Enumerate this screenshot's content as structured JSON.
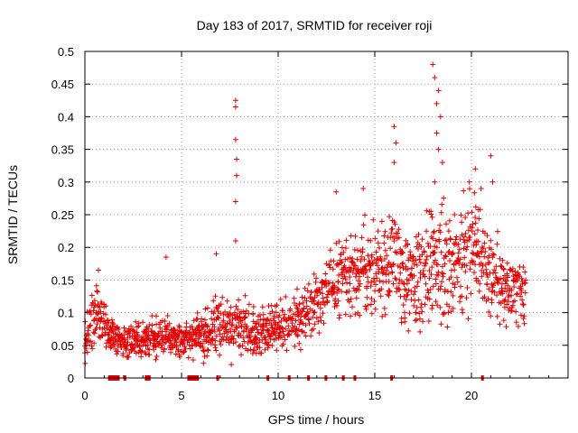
{
  "chart_data": {
    "type": "scatter",
    "title": "Day 183 of 2017, SRMTID for receiver roji",
    "xlabel": "GPS time / hours",
    "ylabel": "SRMTID / TECUs",
    "xlim": [
      0,
      25
    ],
    "ylim": [
      0,
      0.5
    ],
    "x_ticks": [
      "0",
      "5",
      "10",
      "15",
      "20"
    ],
    "y_ticks": [
      "0",
      "0.05",
      "0.1",
      "0.15",
      "0.2",
      "0.25",
      "0.3",
      "0.35",
      "0.4",
      "0.45",
      "0.5"
    ],
    "grid": true,
    "marker": "+",
    "color": "#e00000",
    "data_gaps_on_x_axis": [
      [
        1.2,
        1.8
      ],
      [
        2.0,
        2.1
      ],
      [
        3.1,
        3.4
      ],
      [
        5.3,
        5.9
      ],
      [
        6.8,
        6.9
      ],
      [
        9.4,
        9.5
      ],
      [
        10.5,
        10.6
      ],
      [
        11.5,
        11.6
      ],
      [
        12.4,
        12.5
      ],
      [
        13.3,
        13.4
      ],
      [
        13.9,
        14.0
      ],
      [
        15.8,
        15.9
      ],
      [
        20.5,
        20.6
      ]
    ],
    "profile": [
      {
        "x": 0.0,
        "y": 0.055,
        "spread": 0.03
      },
      {
        "x": 0.6,
        "y": 0.1,
        "spread": 0.05
      },
      {
        "x": 1.2,
        "y": 0.07,
        "spread": 0.03
      },
      {
        "x": 2.0,
        "y": 0.055,
        "spread": 0.025
      },
      {
        "x": 3.0,
        "y": 0.06,
        "spread": 0.025
      },
      {
        "x": 4.0,
        "y": 0.065,
        "spread": 0.035
      },
      {
        "x": 5.0,
        "y": 0.055,
        "spread": 0.025
      },
      {
        "x": 6.0,
        "y": 0.065,
        "spread": 0.035
      },
      {
        "x": 7.0,
        "y": 0.08,
        "spread": 0.05
      },
      {
        "x": 8.0,
        "y": 0.08,
        "spread": 0.05
      },
      {
        "x": 9.0,
        "y": 0.075,
        "spread": 0.04
      },
      {
        "x": 10.0,
        "y": 0.075,
        "spread": 0.04
      },
      {
        "x": 11.0,
        "y": 0.09,
        "spread": 0.04
      },
      {
        "x": 12.0,
        "y": 0.12,
        "spread": 0.05
      },
      {
        "x": 13.0,
        "y": 0.15,
        "spread": 0.06
      },
      {
        "x": 14.0,
        "y": 0.16,
        "spread": 0.07
      },
      {
        "x": 15.0,
        "y": 0.17,
        "spread": 0.07
      },
      {
        "x": 16.0,
        "y": 0.18,
        "spread": 0.08
      },
      {
        "x": 17.0,
        "y": 0.14,
        "spread": 0.08
      },
      {
        "x": 18.0,
        "y": 0.18,
        "spread": 0.1
      },
      {
        "x": 19.0,
        "y": 0.17,
        "spread": 0.08
      },
      {
        "x": 20.0,
        "y": 0.2,
        "spread": 0.09
      },
      {
        "x": 21.0,
        "y": 0.17,
        "spread": 0.08
      },
      {
        "x": 22.0,
        "y": 0.13,
        "spread": 0.05
      },
      {
        "x": 22.8,
        "y": 0.13,
        "spread": 0.04
      }
    ],
    "spikes": [
      {
        "x": 0.7,
        "y": 0.165
      },
      {
        "x": 4.2,
        "y": 0.185
      },
      {
        "x": 6.8,
        "y": 0.19
      },
      {
        "x": 7.8,
        "y": 0.425
      },
      {
        "x": 7.8,
        "y": 0.415
      },
      {
        "x": 7.8,
        "y": 0.365
      },
      {
        "x": 7.85,
        "y": 0.335
      },
      {
        "x": 7.85,
        "y": 0.31
      },
      {
        "x": 7.8,
        "y": 0.27
      },
      {
        "x": 7.8,
        "y": 0.21
      },
      {
        "x": 13.0,
        "y": 0.285
      },
      {
        "x": 14.4,
        "y": 0.29
      },
      {
        "x": 16.0,
        "y": 0.385
      },
      {
        "x": 16.1,
        "y": 0.36
      },
      {
        "x": 16.0,
        "y": 0.33
      },
      {
        "x": 18.0,
        "y": 0.48
      },
      {
        "x": 18.1,
        "y": 0.46
      },
      {
        "x": 18.3,
        "y": 0.44
      },
      {
        "x": 18.2,
        "y": 0.42
      },
      {
        "x": 18.4,
        "y": 0.4
      },
      {
        "x": 18.2,
        "y": 0.375
      },
      {
        "x": 18.3,
        "y": 0.35
      },
      {
        "x": 18.5,
        "y": 0.33
      },
      {
        "x": 18.1,
        "y": 0.3
      },
      {
        "x": 20.2,
        "y": 0.32
      },
      {
        "x": 20.5,
        "y": 0.29
      },
      {
        "x": 21.0,
        "y": 0.34
      },
      {
        "x": 21.1,
        "y": 0.3
      },
      {
        "x": 22.5,
        "y": 0.17
      }
    ]
  }
}
